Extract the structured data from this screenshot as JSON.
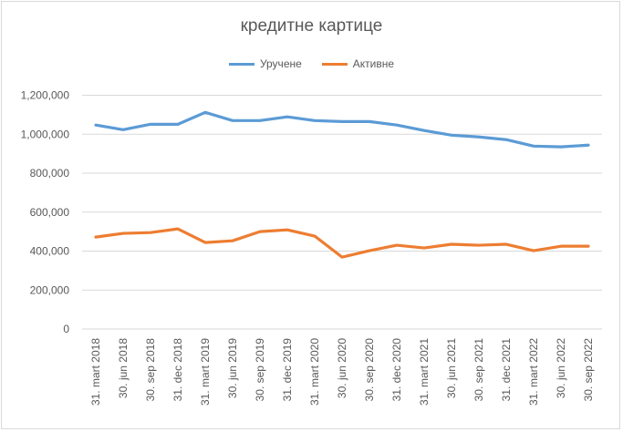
{
  "chart_data": {
    "type": "line",
    "title": "кредитне картице",
    "xlabel": "",
    "ylabel": "",
    "ylim": [
      0,
      1200000
    ],
    "yticks": [
      "0",
      "200,000",
      "400,000",
      "600,000",
      "800,000",
      "1,000,000",
      "1,200,000"
    ],
    "ytick_values": [
      0,
      200000,
      400000,
      600000,
      800000,
      1000000,
      1200000
    ],
    "grid": true,
    "legend_position": "top",
    "categories": [
      "31. mart 2018",
      "30. jun 2018",
      "30. sep 2018",
      "31. dec 2018",
      "31. mart 2019",
      "30. jun 2019",
      "30. sep 2019",
      "31. dec 2019",
      "31. mart 2020",
      "30. jun 2020",
      "30. sep 2020",
      "31. dec 2020",
      "31. mart 2021",
      "30. jun 2021",
      "30. sep 2021",
      "31. dec 2021",
      "31. mart 2022",
      "30. jun 2022",
      "30. sep 2022"
    ],
    "series": [
      {
        "name": "Уручене",
        "color": "#5b9bd5",
        "values": [
          1047000,
          1023000,
          1051000,
          1051000,
          1112000,
          1070000,
          1070000,
          1089000,
          1070000,
          1065000,
          1065000,
          1047000,
          1019000,
          995000,
          986000,
          972000,
          939000,
          935000,
          944000
        ]
      },
      {
        "name": "Активне",
        "color": "#ed7d31",
        "values": [
          472000,
          491000,
          495000,
          514000,
          444000,
          453000,
          500000,
          509000,
          477000,
          369000,
          402000,
          430000,
          416000,
          435000,
          430000,
          435000,
          402000,
          425000,
          425000
        ]
      }
    ]
  }
}
